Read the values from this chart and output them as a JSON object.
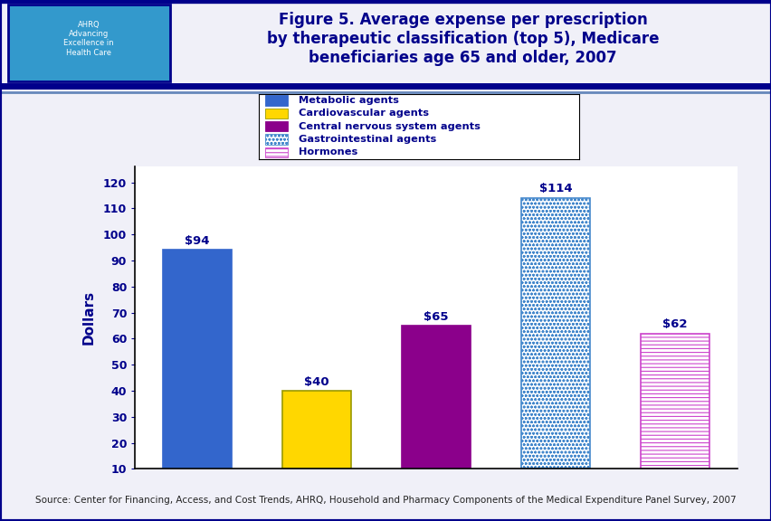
{
  "title": "Figure 5. Average expense per prescription\nby therapeutic classification (top 5), Medicare\nbeneficiaries age 65 and older, 2007",
  "title_color": "#00008B",
  "ylabel": "Dollars",
  "ylabel_color": "#00008B",
  "categories": [
    "Metabolic agents",
    "Cardiovascular agents",
    "Central nervous system agents",
    "Gastrointestinal agents",
    "Hormones"
  ],
  "values": [
    94,
    40,
    65,
    114,
    62
  ],
  "value_labels": [
    "$94",
    "$40",
    "$65",
    "$114",
    "$62"
  ],
  "yticks": [
    10,
    20,
    30,
    40,
    50,
    60,
    70,
    80,
    90,
    100,
    110,
    120
  ],
  "ymin": 10,
  "ymax": 126,
  "label_color": "#00008B",
  "tick_color": "#00008B",
  "source_text": "Source: Center for Financing, Access, and Cost Trends, AHRQ, Household and Pharmacy Components of the Medical Expenditure Panel Survey, 2007",
  "plot_bg_color": "#FFFFFF",
  "fig_bg_color": "#F0F0F8",
  "header_bg_color": "#FFFFFF",
  "header_line_color": "#00008B",
  "bar_configs": [
    {
      "color": "#3366CC",
      "hatch": null,
      "edgecolor": "#3366CC",
      "label": "Metabolic agents"
    },
    {
      "color": "#FFD700",
      "hatch": null,
      "edgecolor": "#999900",
      "label": "Cardiovascular agents"
    },
    {
      "color": "#8B008B",
      "hatch": null,
      "edgecolor": "#8B008B",
      "label": "Central nervous system agents"
    },
    {
      "color": "#FFFFFF",
      "hatch": "oooo",
      "edgecolor": "#4488CC",
      "label": "Gastrointestinal agents"
    },
    {
      "color": "#FFFFFF",
      "hatch": "----",
      "edgecolor": "#CC44CC",
      "label": "Hormones"
    }
  ]
}
